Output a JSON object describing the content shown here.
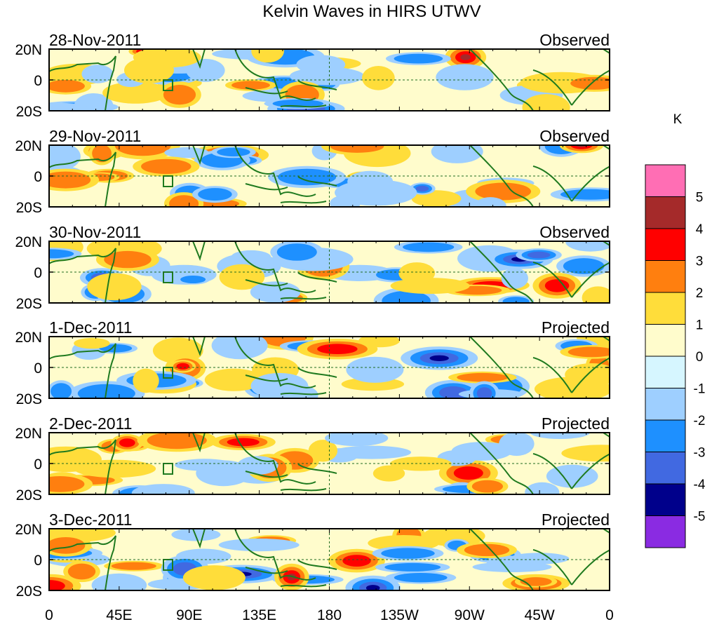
{
  "title": "Kelvin Waves in HIRS UTWV",
  "unit": "K",
  "colorbar": {
    "colors": [
      "#8a2be2",
      "#00008b",
      "#4169e1",
      "#1e90ff",
      "#9ecfff",
      "#d6f6ff",
      "#fffccc",
      "#ffdd3a",
      "#ff7f0f",
      "#ff0000",
      "#a52a2a",
      "#ff6eb4"
    ],
    "labels": [
      "-5",
      "-4",
      "-3",
      "-2",
      "-1",
      "0",
      "1",
      "2",
      "3",
      "4",
      "5"
    ]
  },
  "lat_labels": [
    "20N",
    "0",
    "20S"
  ],
  "lon_labels": [
    "0",
    "45E",
    "90E",
    "135E",
    "180",
    "135W",
    "90W",
    "45W",
    "0"
  ],
  "panels": [
    {
      "date": "28-Nov-2011",
      "status": "Observed"
    },
    {
      "date": "29-Nov-2011",
      "status": "Observed"
    },
    {
      "date": "30-Nov-2011",
      "status": "Observed"
    },
    {
      "date": "1-Dec-2011",
      "status": "Projected"
    },
    {
      "date": "2-Dec-2011",
      "status": "Projected"
    },
    {
      "date": "3-Dec-2011",
      "status": "Projected"
    }
  ]
}
